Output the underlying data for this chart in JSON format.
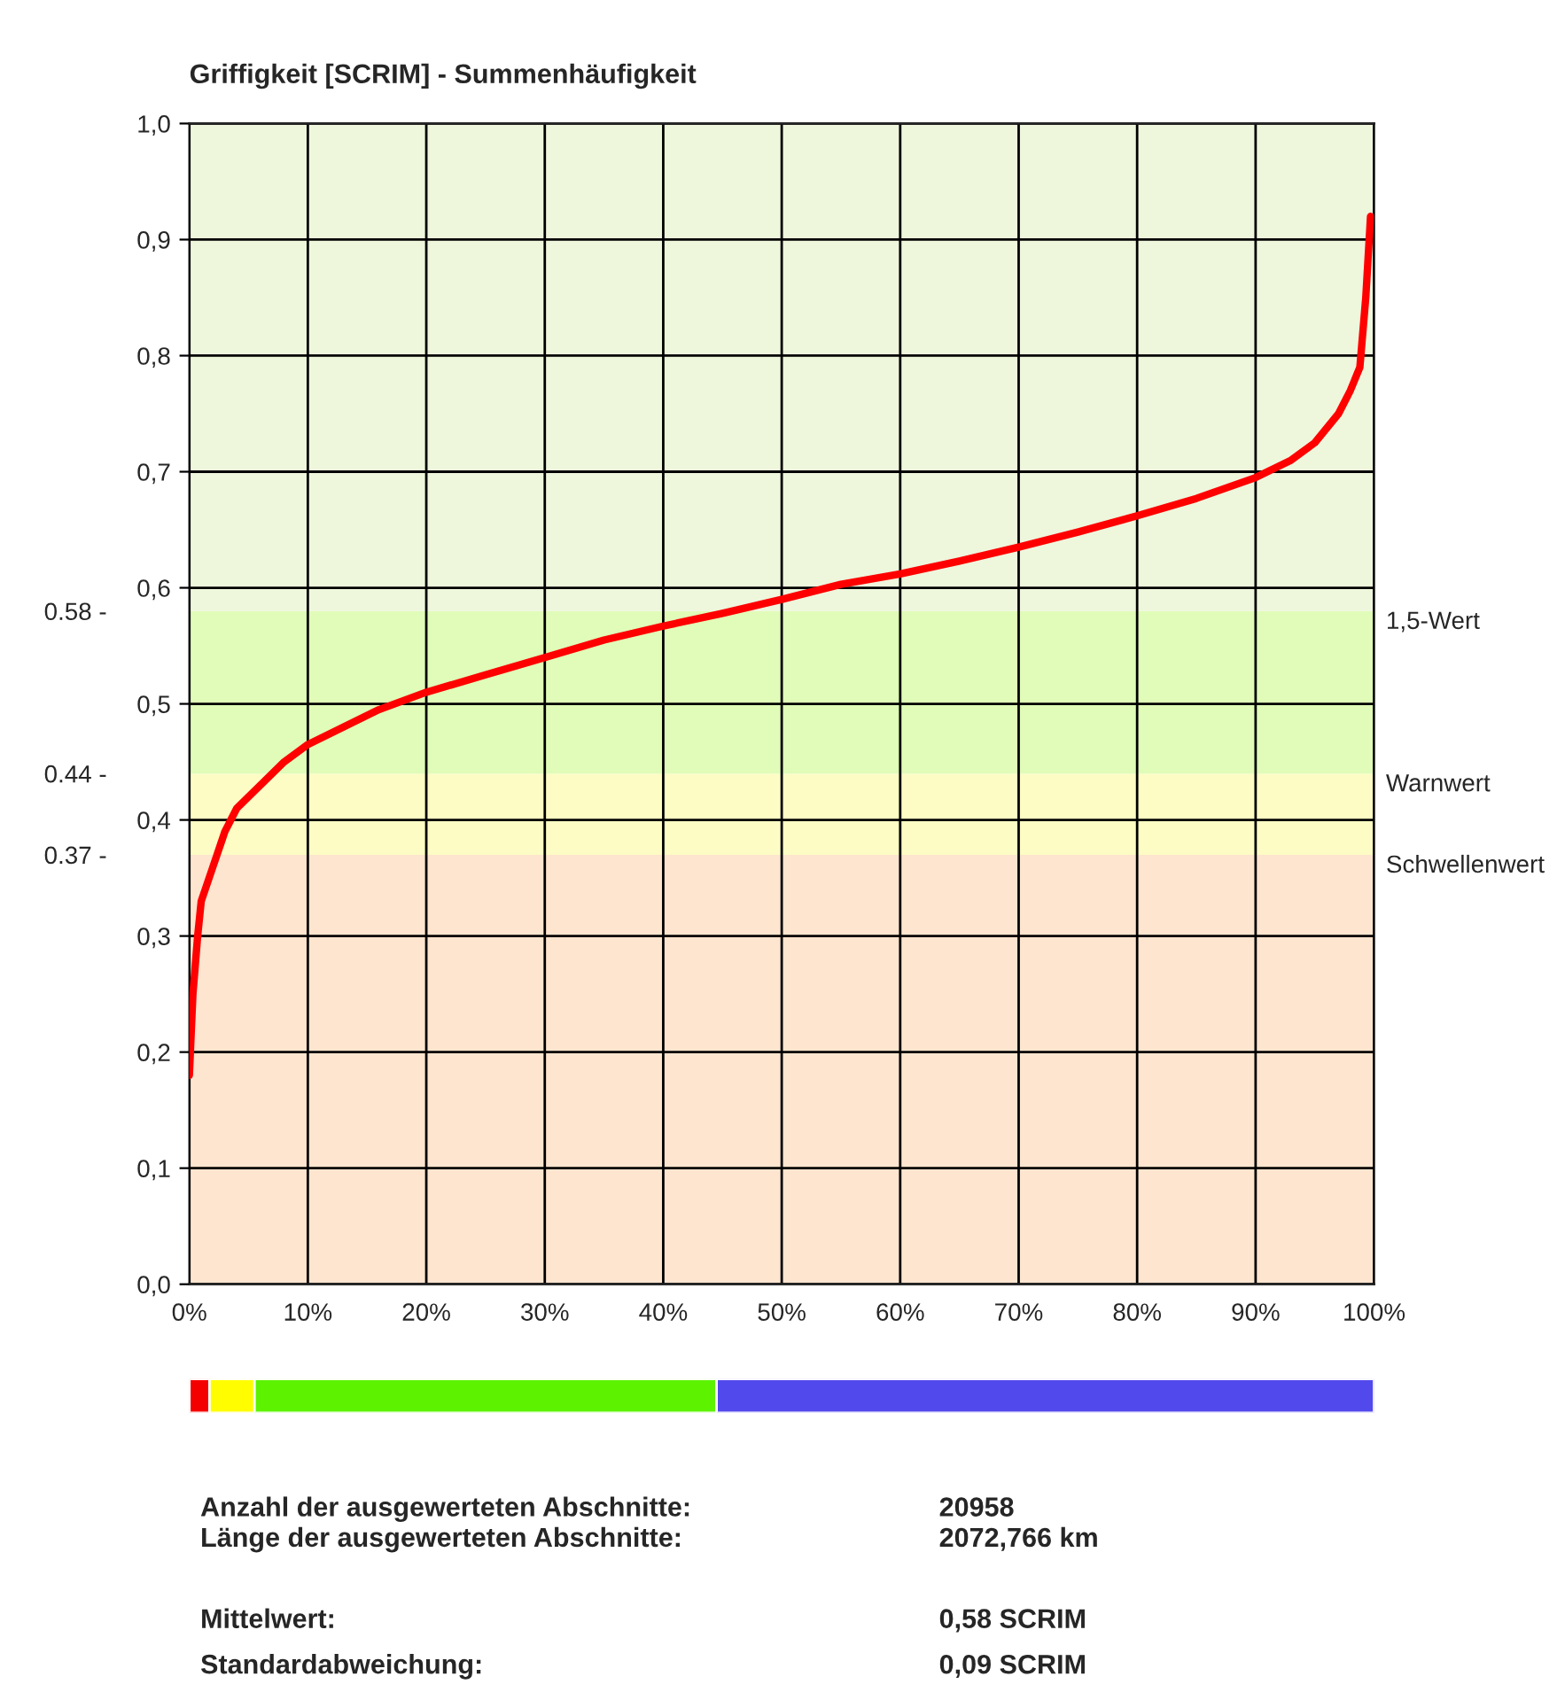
{
  "chart_data": [
    {
      "type": "line",
      "title": "Griffigkeit [SCRIM] - Summenhäufigkeit",
      "xlim": [
        0,
        100
      ],
      "xticks": [
        {
          "value": 0,
          "label": "0%"
        },
        {
          "value": 10,
          "label": "10%"
        },
        {
          "value": 20,
          "label": "20%"
        },
        {
          "value": 30,
          "label": "30%"
        },
        {
          "value": 40,
          "label": "40%"
        },
        {
          "value": 50,
          "label": "50%"
        },
        {
          "value": 60,
          "label": "60%"
        },
        {
          "value": 70,
          "label": "70%"
        },
        {
          "value": 80,
          "label": "80%"
        },
        {
          "value": 90,
          "label": "90%"
        },
        {
          "value": 100,
          "label": "100%"
        }
      ],
      "ylim": [
        0,
        1
      ],
      "yticks": [
        {
          "value": 0,
          "label": "0,0"
        },
        {
          "value": 0.1,
          "label": "0,1"
        },
        {
          "value": 0.2,
          "label": "0,2"
        },
        {
          "value": 0.3,
          "label": "0,3"
        },
        {
          "value": 0.4,
          "label": "0,4"
        },
        {
          "value": 0.5,
          "label": "0,5"
        },
        {
          "value": 0.6,
          "label": "0,6"
        },
        {
          "value": 0.7,
          "label": "0,7"
        },
        {
          "value": 0.8,
          "label": "0,8"
        },
        {
          "value": 0.9,
          "label": "0,9"
        },
        {
          "value": 1,
          "label": "1,0"
        }
      ],
      "y2lim": [
        0,
        1
      ],
      "y2ticks": [
        {
          "value": 0.58,
          "label": "0.58 -"
        },
        {
          "value": 0.44,
          "label": "0.44 -"
        },
        {
          "value": 0.37,
          "label": "0.37 -"
        }
      ],
      "grid": true,
      "legend": false,
      "marker": "none",
      "line_style": "solid",
      "series": [
        {
          "color": "#ff0000",
          "x": [
            0,
            0.3,
            0.7,
            1,
            2,
            3,
            4,
            6,
            8,
            10,
            13,
            16,
            20,
            25,
            30,
            35,
            40,
            45,
            50,
            55,
            60,
            65,
            70,
            75,
            80,
            85,
            90,
            93,
            95,
            97,
            98,
            98.8,
            99.3,
            99.7
          ],
          "values": [
            0.18,
            0.25,
            0.3,
            0.33,
            0.36,
            0.39,
            0.41,
            0.43,
            0.45,
            0.465,
            0.48,
            0.495,
            0.51,
            0.525,
            0.54,
            0.555,
            0.567,
            0.578,
            0.59,
            0.603,
            0.612,
            0.623,
            0.635,
            0.648,
            0.662,
            0.677,
            0.695,
            0.71,
            0.725,
            0.75,
            0.77,
            0.79,
            0.85,
            0.92
          ]
        }
      ],
      "bands": [
        {
          "axis": "y",
          "from": 0,
          "to": 0.37,
          "color": "#fde5cf"
        },
        {
          "axis": "y",
          "from": 0.37,
          "to": 0.44,
          "color": "#fdfcc4",
          "label": "Schwellenwert"
        },
        {
          "axis": "y",
          "from": 0.44,
          "to": 0.58,
          "color": "#e0fcb8",
          "label": "Warnwert"
        },
        {
          "axis": "y",
          "from": 0.58,
          "to": 1,
          "color": "#eef6dc",
          "label": "1,5-Wert"
        }
      ],
      "annotations": [
        "Anzahl der ausgewerteten Abschnitte:",
        "20958",
        "Länge der ausgewerteten Abschnitte:",
        "2072,766 km",
        "Mittelwert:",
        "0,58 SCRIM",
        "Standardabweichung:",
        "0,09 SCRIM"
      ]
    },
    {
      "type": "bar",
      "orientation": "horizontal",
      "stacked": true,
      "categories": [
        null
      ],
      "xlim": [
        0,
        100
      ],
      "tick_labels": false,
      "series": [
        {
          "color": "#f50000",
          "values": [
            1.7
          ]
        },
        {
          "color": "#fffd00",
          "values": [
            3.8
          ]
        },
        {
          "color": "#5cf200",
          "values": [
            39
          ]
        },
        {
          "color": "#5249ec",
          "values": [
            55.5
          ]
        }
      ]
    }
  ]
}
